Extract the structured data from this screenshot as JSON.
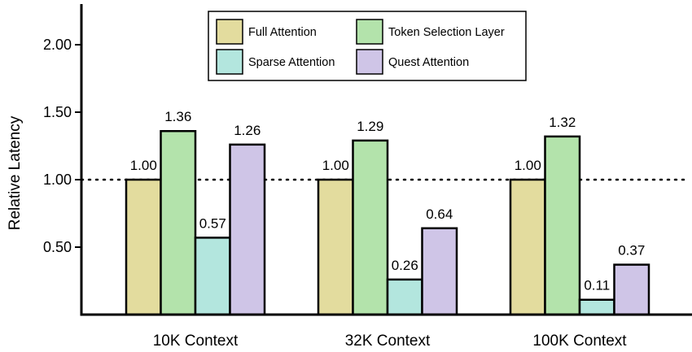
{
  "chart_data": {
    "type": "bar",
    "ylabel": "Relative Latency",
    "ylim": [
      0,
      2.25
    ],
    "yticks": [
      "2.00",
      "1.50",
      "1.00",
      "0.50"
    ],
    "ytick_values": [
      2.0,
      1.5,
      1.0,
      0.5
    ],
    "reference_line": 1.0,
    "categories": [
      "10K Context",
      "32K Context",
      "100K Context"
    ],
    "series": [
      {
        "name": "Full Attention",
        "color": "#e3dc9e",
        "values": [
          1.0,
          1.0,
          1.0
        ],
        "labels": [
          "1.00",
          "1.00",
          "1.00"
        ]
      },
      {
        "name": "Token Selection Layer",
        "color": "#b3e3ab",
        "values": [
          1.36,
          1.29,
          1.32
        ],
        "labels": [
          "1.36",
          "1.29",
          "1.32"
        ]
      },
      {
        "name": "Sparse Attention",
        "color": "#b3e6de",
        "values": [
          0.57,
          0.26,
          0.11
        ],
        "labels": [
          "0.57",
          "0.26",
          "0.11"
        ]
      },
      {
        "name": "Quest Attention",
        "color": "#cfc5e7",
        "values": [
          1.26,
          0.64,
          0.37
        ],
        "labels": [
          "1.26",
          "0.64",
          "0.37"
        ]
      }
    ],
    "legend": {
      "placement": "top-center",
      "rows": [
        [
          "Full Attention",
          "Token Selection Layer"
        ],
        [
          "Sparse Attention",
          "Quest Attention"
        ]
      ]
    },
    "grid": false
  }
}
